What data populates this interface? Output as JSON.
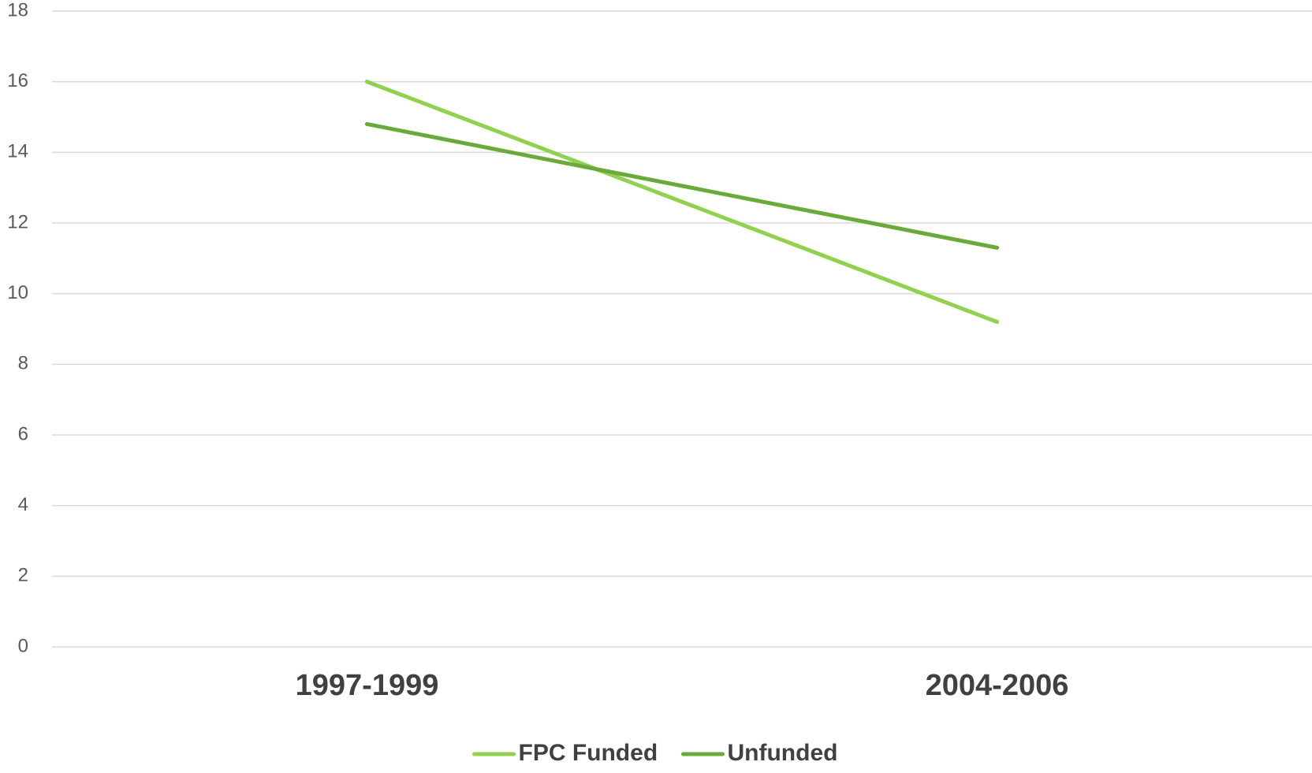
{
  "chart_data": {
    "type": "line",
    "categories": [
      "1997-1999",
      "2004-2006"
    ],
    "series": [
      {
        "name": "FPC Funded",
        "values": [
          16.0,
          9.2
        ],
        "color": "#92d050"
      },
      {
        "name": "Unfunded",
        "values": [
          14.8,
          11.3
        ],
        "color": "#6aaa3a"
      }
    ],
    "title": "",
    "xlabel": "",
    "ylabel": "",
    "ylim": [
      0,
      18
    ],
    "yticks": [
      "0",
      "2",
      "4",
      "6",
      "8",
      "10",
      "12",
      "14",
      "16",
      "18"
    ],
    "grid": true,
    "gridline_color": "#d9d9d9",
    "legend_position": "bottom"
  }
}
